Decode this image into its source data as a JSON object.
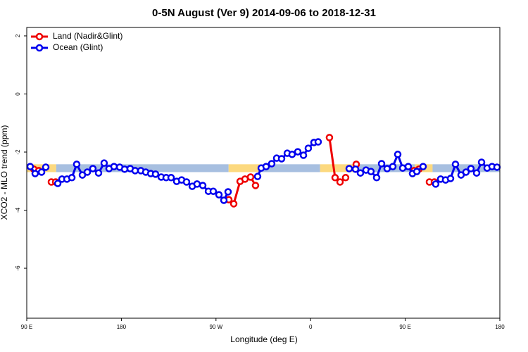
{
  "chart_data": {
    "type": "line",
    "title": "0-5N August (Ver 9)   2014-09-06 to 2018-12-31",
    "x_label": "Longitude (deg E)",
    "y_label": "XCO2 - MLO trend (ppm)",
    "xlim": [
      90,
      540
    ],
    "ylim": [
      -7.72,
      2.29
    ],
    "xticks": [
      {
        "value": 90,
        "label": "90 E"
      },
      180,
      {
        "value": 270,
        "label": "90 W"
      },
      {
        "value": 360,
        "label": "0"
      },
      {
        "value": 450,
        "label": "90 E"
      },
      {
        "value": 540,
        "label": "180"
      }
    ],
    "yticks": [
      -6,
      -4,
      -2,
      0,
      2
    ],
    "legend": "top-left",
    "background_band": {
      "y": [
        -2.69,
        -2.42
      ],
      "segments": [
        {
          "x": [
            90,
            118
          ],
          "color": "#fcd97f"
        },
        {
          "x": [
            118,
            282
          ],
          "color": "#a7bfe0"
        },
        {
          "x": [
            282,
            312
          ],
          "color": "#fcd97f"
        },
        {
          "x": [
            312,
            369
          ],
          "color": "#a7bfe0"
        },
        {
          "x": [
            369,
            403
          ],
          "color": "#fcd97f"
        },
        {
          "x": [
            403,
            459
          ],
          "color": "#a7bfe0"
        },
        {
          "x": [
            459,
            476
          ],
          "color": "#fcd97f"
        },
        {
          "x": [
            476,
            540
          ],
          "color": "#a7bfe0"
        }
      ]
    },
    "series": [
      {
        "name": "Land (Nadir&Glint)",
        "color": "#ee0000",
        "x": [
          96.7,
          101.4,
          null,
          113.4,
          117.5,
          null,
          282.2,
          286.9,
          292.9,
          297.6,
          302.9,
          307.6,
          null,
          377.9,
          383.3,
          388.0,
          393.3,
          null,
          403.4,
          null,
          458.3,
          463.0,
          null,
          473.0,
          477.7
        ],
        "values": [
          -2.59,
          -2.64,
          null,
          -3.03,
          -3.03,
          null,
          -3.64,
          -3.78,
          -3.01,
          -2.93,
          -2.86,
          -3.15,
          null,
          -1.5,
          -2.88,
          -3.03,
          -2.88,
          null,
          -2.42,
          null,
          -2.64,
          -2.59,
          null,
          -3.03,
          -3.03
        ]
      },
      {
        "name": "Ocean (Glint)",
        "color": "#0000ee",
        "x": [
          93.3,
          98.0,
          104.1,
          108.1,
          null,
          119.5,
          123.5,
          128.2,
          132.9,
          137.5,
          142.9,
          147.6,
          152.9,
          158.3,
          163.6,
          168.3,
          173.0,
          178.4,
          183.1,
          188.4,
          193.1,
          198.5,
          203.2,
          207.9,
          212.5,
          217.9,
          222.6,
          227.3,
          232.6,
          237.3,
          242.0,
          247.4,
          252.0,
          257.4,
          262.8,
          267.4,
          272.8,
          277.5,
          281.5,
          null,
          309.6,
          313.0,
          317.7,
          323.0,
          327.7,
          332.4,
          337.8,
          342.4,
          347.8,
          353.2,
          357.8,
          363.2,
          367.2,
          null,
          396.7,
          402.7,
          407.4,
          412.7,
          417.4,
          422.8,
          427.5,
          432.8,
          438.2,
          442.9,
          447.6,
          452.9,
          456.9,
          461.0,
          467.0,
          null,
          479.0,
          483.7,
          488.4,
          493.1,
          497.8,
          503.1,
          507.8,
          512.5,
          517.9,
          522.6,
          527.9,
          532.6,
          537.3
        ],
        "values": [
          -2.5,
          -2.74,
          -2.69,
          -2.52,
          null,
          -3.08,
          -2.93,
          -2.93,
          -2.88,
          -2.42,
          -2.79,
          -2.69,
          -2.57,
          -2.72,
          -2.38,
          -2.57,
          -2.5,
          -2.52,
          -2.59,
          -2.57,
          -2.64,
          -2.64,
          -2.69,
          -2.74,
          -2.76,
          -2.86,
          -2.88,
          -2.88,
          -3.01,
          -2.96,
          -3.03,
          -3.18,
          -3.1,
          -3.15,
          -3.35,
          -3.35,
          -3.47,
          -3.66,
          -3.37,
          null,
          -2.84,
          -2.55,
          -2.5,
          -2.4,
          -2.21,
          -2.23,
          -2.04,
          -2.08,
          -1.99,
          -2.11,
          -1.87,
          -1.67,
          -1.65,
          null,
          -2.57,
          -2.59,
          -2.72,
          -2.62,
          -2.67,
          -2.88,
          -2.4,
          -2.57,
          -2.5,
          -2.08,
          -2.55,
          -2.5,
          -2.74,
          -2.67,
          -2.5,
          null,
          -3.1,
          -2.93,
          -2.96,
          -2.91,
          -2.42,
          -2.79,
          -2.69,
          -2.57,
          -2.72,
          -2.35,
          -2.55,
          -2.5,
          -2.52
        ]
      }
    ]
  }
}
